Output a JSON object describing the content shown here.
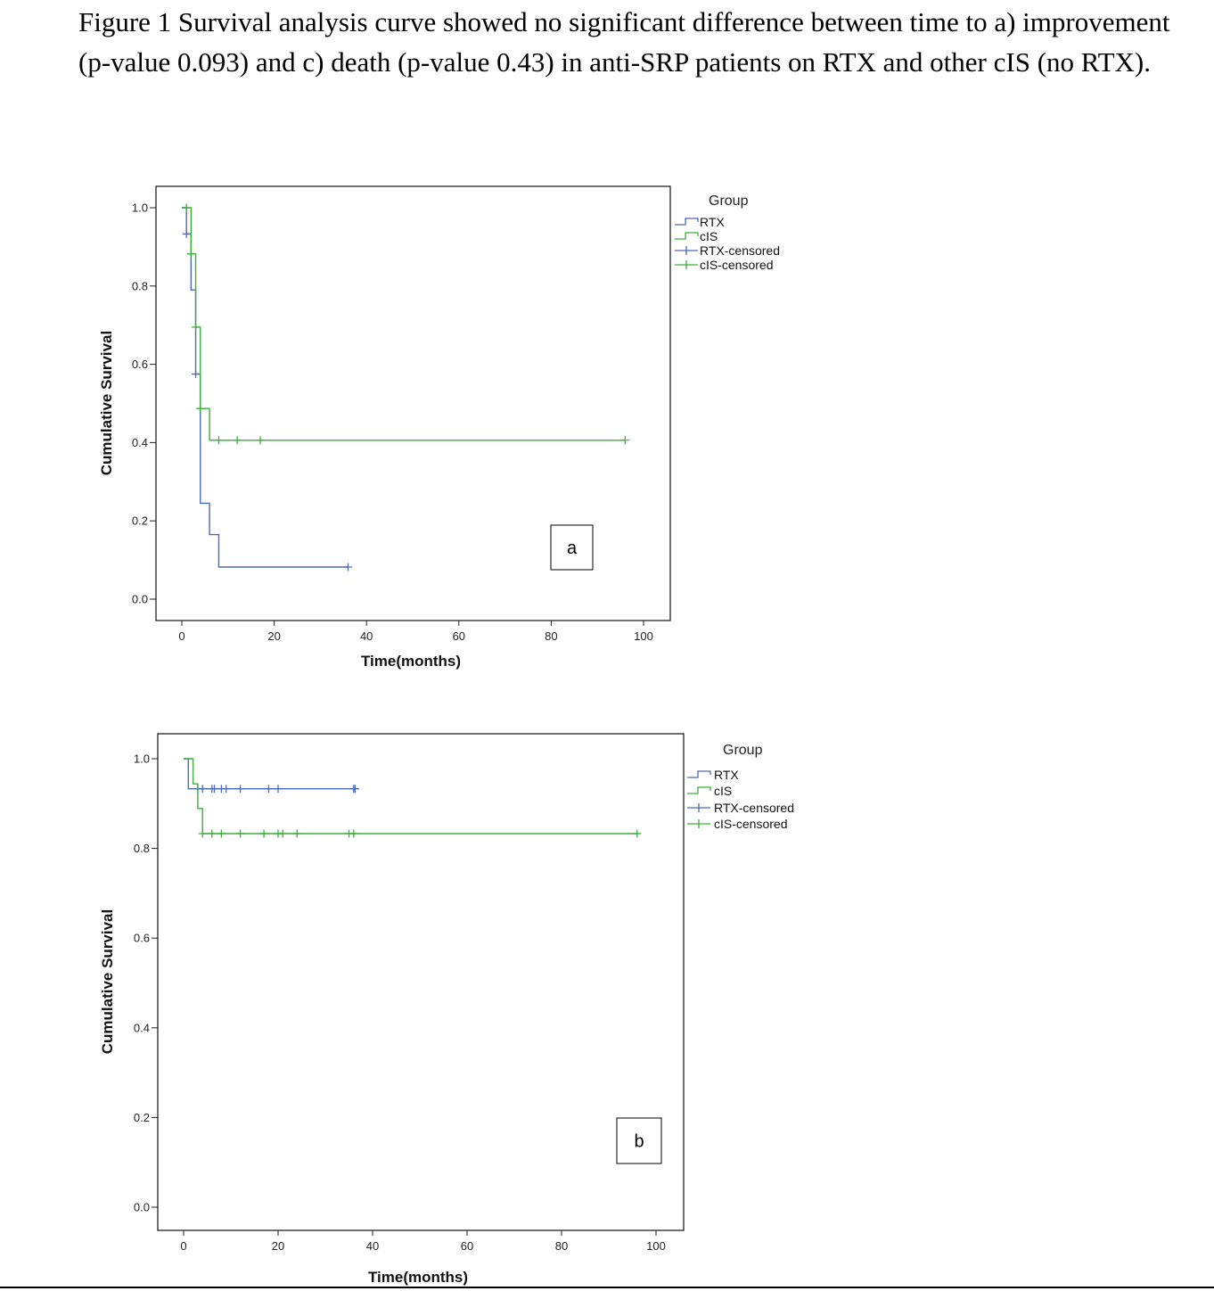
{
  "caption": "Figure 1 Survival analysis curve showed no significant difference between time to a) improvement (p-value 0.093) and c) death (p-value 0.43) in anti-SRP patients on RTX and other cIS (no RTX).",
  "colors": {
    "RTX": "#4a6bb8",
    "cIS": "#3cae3c"
  },
  "chart_data": [
    {
      "type": "line",
      "subtype": "kaplan-meier-step",
      "panel_label": "a",
      "xlabel": "Time(months)",
      "ylabel": "Cumulative Survival",
      "xlim": [
        0,
        100
      ],
      "ylim": [
        0,
        1
      ],
      "xticks": [
        0,
        20,
        40,
        60,
        80,
        100
      ],
      "yticks": [
        0.0,
        0.2,
        0.4,
        0.6,
        0.8,
        1.0
      ],
      "ytick_labels": [
        "0.0",
        "0.2",
        "0.4",
        "0.6",
        "0.8",
        "1.0"
      ],
      "legend": {
        "title": "Group",
        "position": "top-right outside",
        "entries": [
          "RTX",
          "cIS",
          "RTX-censored",
          "cIS-censored"
        ]
      },
      "series": [
        {
          "name": "RTX",
          "color": "#4a6bb8",
          "steps": [
            [
              0,
              1.0
            ],
            [
              1,
              0.933
            ],
            [
              2,
              0.79
            ],
            [
              3,
              0.575
            ],
            [
              4,
              0.245
            ],
            [
              6,
              0.165
            ],
            [
              8,
              0.082
            ],
            [
              36,
              0.082
            ]
          ],
          "censored": [
            [
              1,
              0.933
            ],
            [
              3,
              0.575
            ],
            [
              36,
              0.082
            ]
          ]
        },
        {
          "name": "cIS",
          "color": "#3cae3c",
          "steps": [
            [
              0,
              1.0
            ],
            [
              2,
              0.882
            ],
            [
              3,
              0.695
            ],
            [
              4,
              0.487
            ],
            [
              6,
              0.406
            ],
            [
              96,
              0.406
            ]
          ],
          "censored": [
            [
              1,
              1.0
            ],
            [
              2,
              0.882
            ],
            [
              3,
              0.695
            ],
            [
              4,
              0.487
            ],
            [
              8,
              0.406
            ],
            [
              12,
              0.406
            ],
            [
              17,
              0.406
            ],
            [
              96,
              0.406
            ]
          ]
        }
      ]
    },
    {
      "type": "line",
      "subtype": "kaplan-meier-step",
      "panel_label": "b",
      "xlabel": "Time(months)",
      "ylabel": "Cumulative Survival",
      "xlim": [
        0,
        100
      ],
      "ylim": [
        0,
        1
      ],
      "xticks": [
        0,
        20,
        40,
        60,
        80,
        100
      ],
      "yticks": [
        0.0,
        0.2,
        0.4,
        0.6,
        0.8,
        1.0
      ],
      "ytick_labels": [
        "0.0",
        "0.2",
        "0.4",
        "0.6",
        "0.8",
        "1.0"
      ],
      "legend": {
        "title": "Group",
        "position": "top-right outside",
        "entries": [
          "RTX",
          "cIS",
          "RTX-censored",
          "cIS-censored"
        ]
      },
      "series": [
        {
          "name": "RTX",
          "color": "#4a6bb8",
          "steps": [
            [
              0,
              1.0
            ],
            [
              1,
              0.933
            ],
            [
              36,
              0.933
            ]
          ],
          "censored": [
            [
              3,
              0.933
            ],
            [
              4,
              0.933
            ],
            [
              6,
              0.933
            ],
            [
              6.5,
              0.933
            ],
            [
              8,
              0.933
            ],
            [
              9,
              0.933
            ],
            [
              12,
              0.933
            ],
            [
              18,
              0.933
            ],
            [
              20,
              0.933
            ],
            [
              36,
              0.933
            ],
            [
              36.3,
              0.933
            ]
          ]
        },
        {
          "name": "cIS",
          "color": "#3cae3c",
          "steps": [
            [
              0,
              1.0
            ],
            [
              2,
              0.944
            ],
            [
              3,
              0.889
            ],
            [
              4,
              0.833
            ],
            [
              96,
              0.833
            ]
          ],
          "censored": [
            [
              4,
              0.833
            ],
            [
              6,
              0.833
            ],
            [
              8,
              0.833
            ],
            [
              12,
              0.833
            ],
            [
              17,
              0.833
            ],
            [
              20,
              0.833
            ],
            [
              21,
              0.833
            ],
            [
              24,
              0.833
            ],
            [
              35,
              0.833
            ],
            [
              36,
              0.833
            ],
            [
              96,
              0.833
            ]
          ]
        }
      ]
    }
  ]
}
